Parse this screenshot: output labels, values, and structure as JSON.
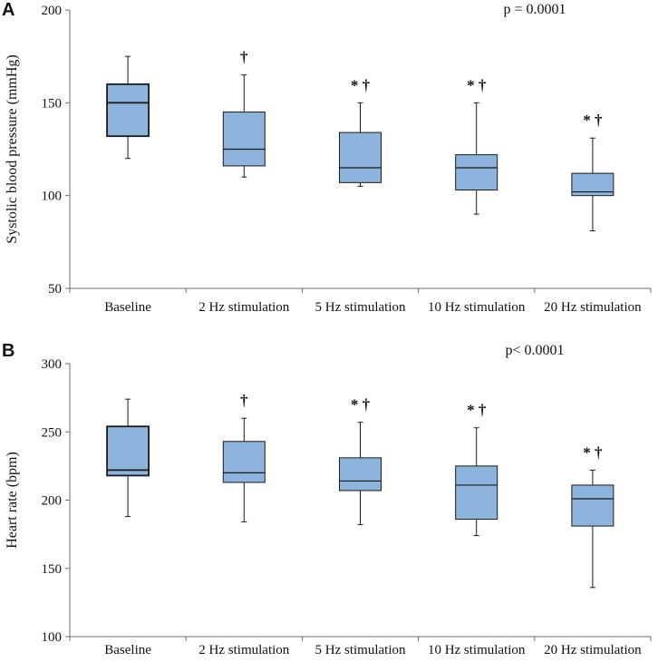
{
  "chart_data": [
    {
      "type": "box",
      "panel_label": "A",
      "ylabel": "Systolic blood pressure (mmHg)",
      "xlabel": "",
      "ylim": [
        50,
        200
      ],
      "yticks": [
        "50",
        "100",
        "150",
        "200"
      ],
      "annotation": "p = 0.0001",
      "categories": [
        "Baseline",
        "2 Hz stimulation",
        "5 Hz stimulation",
        "10 Hz stimulation",
        "20 Hz stimulation"
      ],
      "boxes": [
        {
          "min": 120,
          "q1": 132,
          "median": 150,
          "q3": 160,
          "max": 175,
          "sig": ""
        },
        {
          "min": 110,
          "q1": 116,
          "median": 125,
          "q3": 145,
          "max": 165,
          "sig": "†"
        },
        {
          "min": 105,
          "q1": 107,
          "median": 115,
          "q3": 134,
          "max": 150,
          "sig": "* †"
        },
        {
          "min": 90,
          "q1": 103,
          "median": 115,
          "q3": 122,
          "max": 150,
          "sig": "* †"
        },
        {
          "min": 81,
          "q1": 100,
          "median": 102,
          "q3": 112,
          "max": 131,
          "sig": "* †"
        }
      ]
    },
    {
      "type": "box",
      "panel_label": "B",
      "ylabel": "Heart rate (bpm)",
      "xlabel": "",
      "ylim": [
        100,
        300
      ],
      "yticks": [
        "100",
        "150",
        "200",
        "250",
        "300"
      ],
      "annotation": "p< 0.0001",
      "categories": [
        "Baseline",
        "2 Hz stimulation",
        "5 Hz stimulation",
        "10 Hz stimulation",
        "20 Hz stimulation"
      ],
      "boxes": [
        {
          "min": 188,
          "q1": 218,
          "median": 222,
          "q3": 254,
          "max": 274,
          "sig": ""
        },
        {
          "min": 184,
          "q1": 213,
          "median": 220,
          "q3": 243,
          "max": 260,
          "sig": "†"
        },
        {
          "min": 182,
          "q1": 207,
          "median": 214,
          "q3": 231,
          "max": 257,
          "sig": "* †"
        },
        {
          "min": 174,
          "q1": 186,
          "median": 211,
          "q3": 225,
          "max": 253,
          "sig": "* †"
        },
        {
          "min": 136,
          "q1": 181,
          "median": 201,
          "q3": 211,
          "max": 222,
          "sig": "* †"
        }
      ]
    }
  ],
  "colors": {
    "box_fill": "#8db4dc",
    "box_stroke": "#1a1a1a",
    "axis": "#6e6e6e",
    "text": "#111111"
  }
}
